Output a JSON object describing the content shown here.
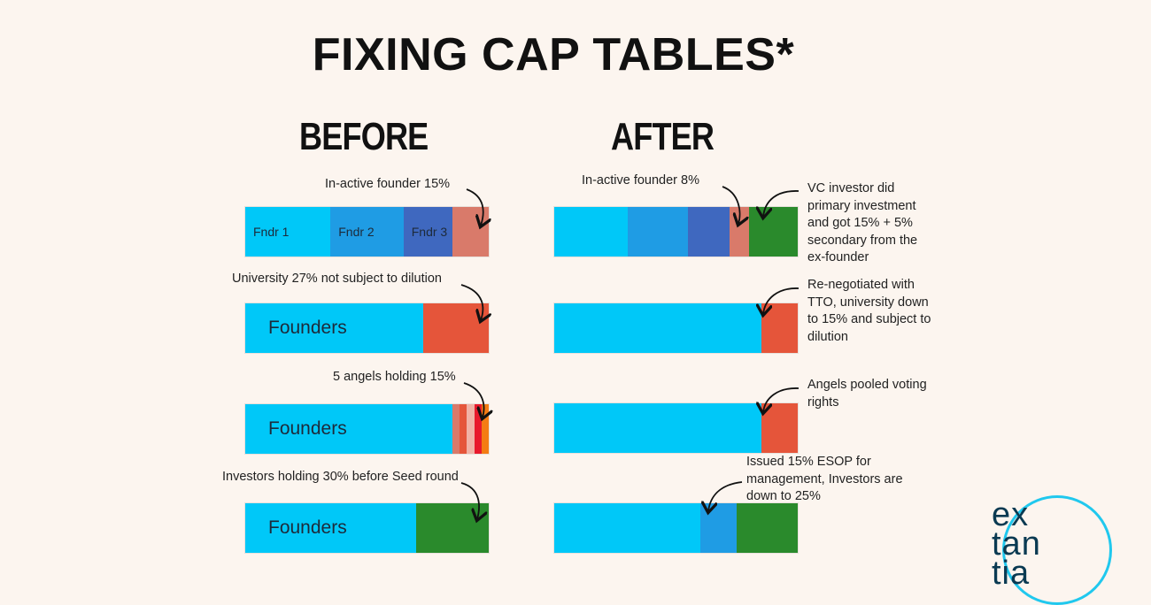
{
  "title": "FIXING CAP TABLES*",
  "before_heading": "BEFORE",
  "after_heading": "AFTER",
  "colors": {
    "bright_blue": "#00c8f8",
    "mid_blue": "#1f9ce4",
    "dark_blue": "#3f68bf",
    "salmon": "#d97a6a",
    "red_orange": "#e5553a",
    "green": "#2a8a2c"
  },
  "rows": [
    {
      "before": {
        "note": "In-active founder 15%",
        "segments": [
          {
            "label": "Fndr 1",
            "value": 35,
            "color": "#00c8f8"
          },
          {
            "label": "Fndr 2",
            "value": 30,
            "color": "#1f9ce4"
          },
          {
            "label": "Fndr 3",
            "value": 20,
            "color": "#3f68bf"
          },
          {
            "label": "",
            "value": 15,
            "color": "#d97a6a"
          }
        ]
      },
      "after": {
        "note_left": "In-active founder 8%",
        "note_right": "VC investor did\nprimary investment\nand got 15% + 5%\nsecondary from the\nex-founder",
        "segments": [
          {
            "label": "",
            "value": 30,
            "color": "#00c8f8"
          },
          {
            "label": "",
            "value": 25,
            "color": "#1f9ce4"
          },
          {
            "label": "",
            "value": 17,
            "color": "#3f68bf"
          },
          {
            "label": "",
            "value": 8,
            "color": "#d97a6a"
          },
          {
            "label": "",
            "value": 20,
            "color": "#2a8a2c"
          }
        ]
      }
    },
    {
      "before": {
        "note": "University 27% not subject to dilution",
        "segments": [
          {
            "label": "Founders",
            "value": 73,
            "color": "#00c8f8"
          },
          {
            "label": "",
            "value": 27,
            "color": "#e5553a"
          }
        ]
      },
      "after": {
        "note_right": "Re-negotiated with\nTTO, university down\nto 15% and subject to\ndilution",
        "segments": [
          {
            "label": "",
            "value": 85,
            "color": "#00c8f8"
          },
          {
            "label": "",
            "value": 15,
            "color": "#e5553a"
          }
        ]
      }
    },
    {
      "before": {
        "note": "5 angels holding 15%",
        "segments": [
          {
            "label": "Founders",
            "value": 85,
            "color": "#00c8f8"
          },
          {
            "label": "",
            "value": 3,
            "color": "#d97a6a"
          },
          {
            "label": "",
            "value": 3,
            "color": "#e5553a"
          },
          {
            "label": "",
            "value": 3,
            "color": "#f0b2a6"
          },
          {
            "label": "",
            "value": 3,
            "color": "#e8192c"
          },
          {
            "label": "",
            "value": 3,
            "color": "#f47c14"
          }
        ]
      },
      "after": {
        "note_right": "Angels pooled voting\nrights",
        "segments": [
          {
            "label": "",
            "value": 85,
            "color": "#00c8f8"
          },
          {
            "label": "",
            "value": 15,
            "color": "#e5553a"
          }
        ]
      }
    },
    {
      "before": {
        "note": "Investors holding 30% before Seed round",
        "segments": [
          {
            "label": "Founders",
            "value": 70,
            "color": "#00c8f8"
          },
          {
            "label": "",
            "value": 30,
            "color": "#2a8a2c"
          }
        ]
      },
      "after": {
        "note_top": "Issued 15% ESOP for\nmanagement, Investors are\ndown to 25%",
        "segments": [
          {
            "label": "",
            "value": 60,
            "color": "#00c8f8"
          },
          {
            "label": "",
            "value": 15,
            "color": "#1f9ce4"
          },
          {
            "label": "",
            "value": 25,
            "color": "#2a8a2c"
          }
        ]
      }
    }
  ],
  "logo": {
    "line1": "ex",
    "line2": "tan",
    "line3": "tia"
  }
}
